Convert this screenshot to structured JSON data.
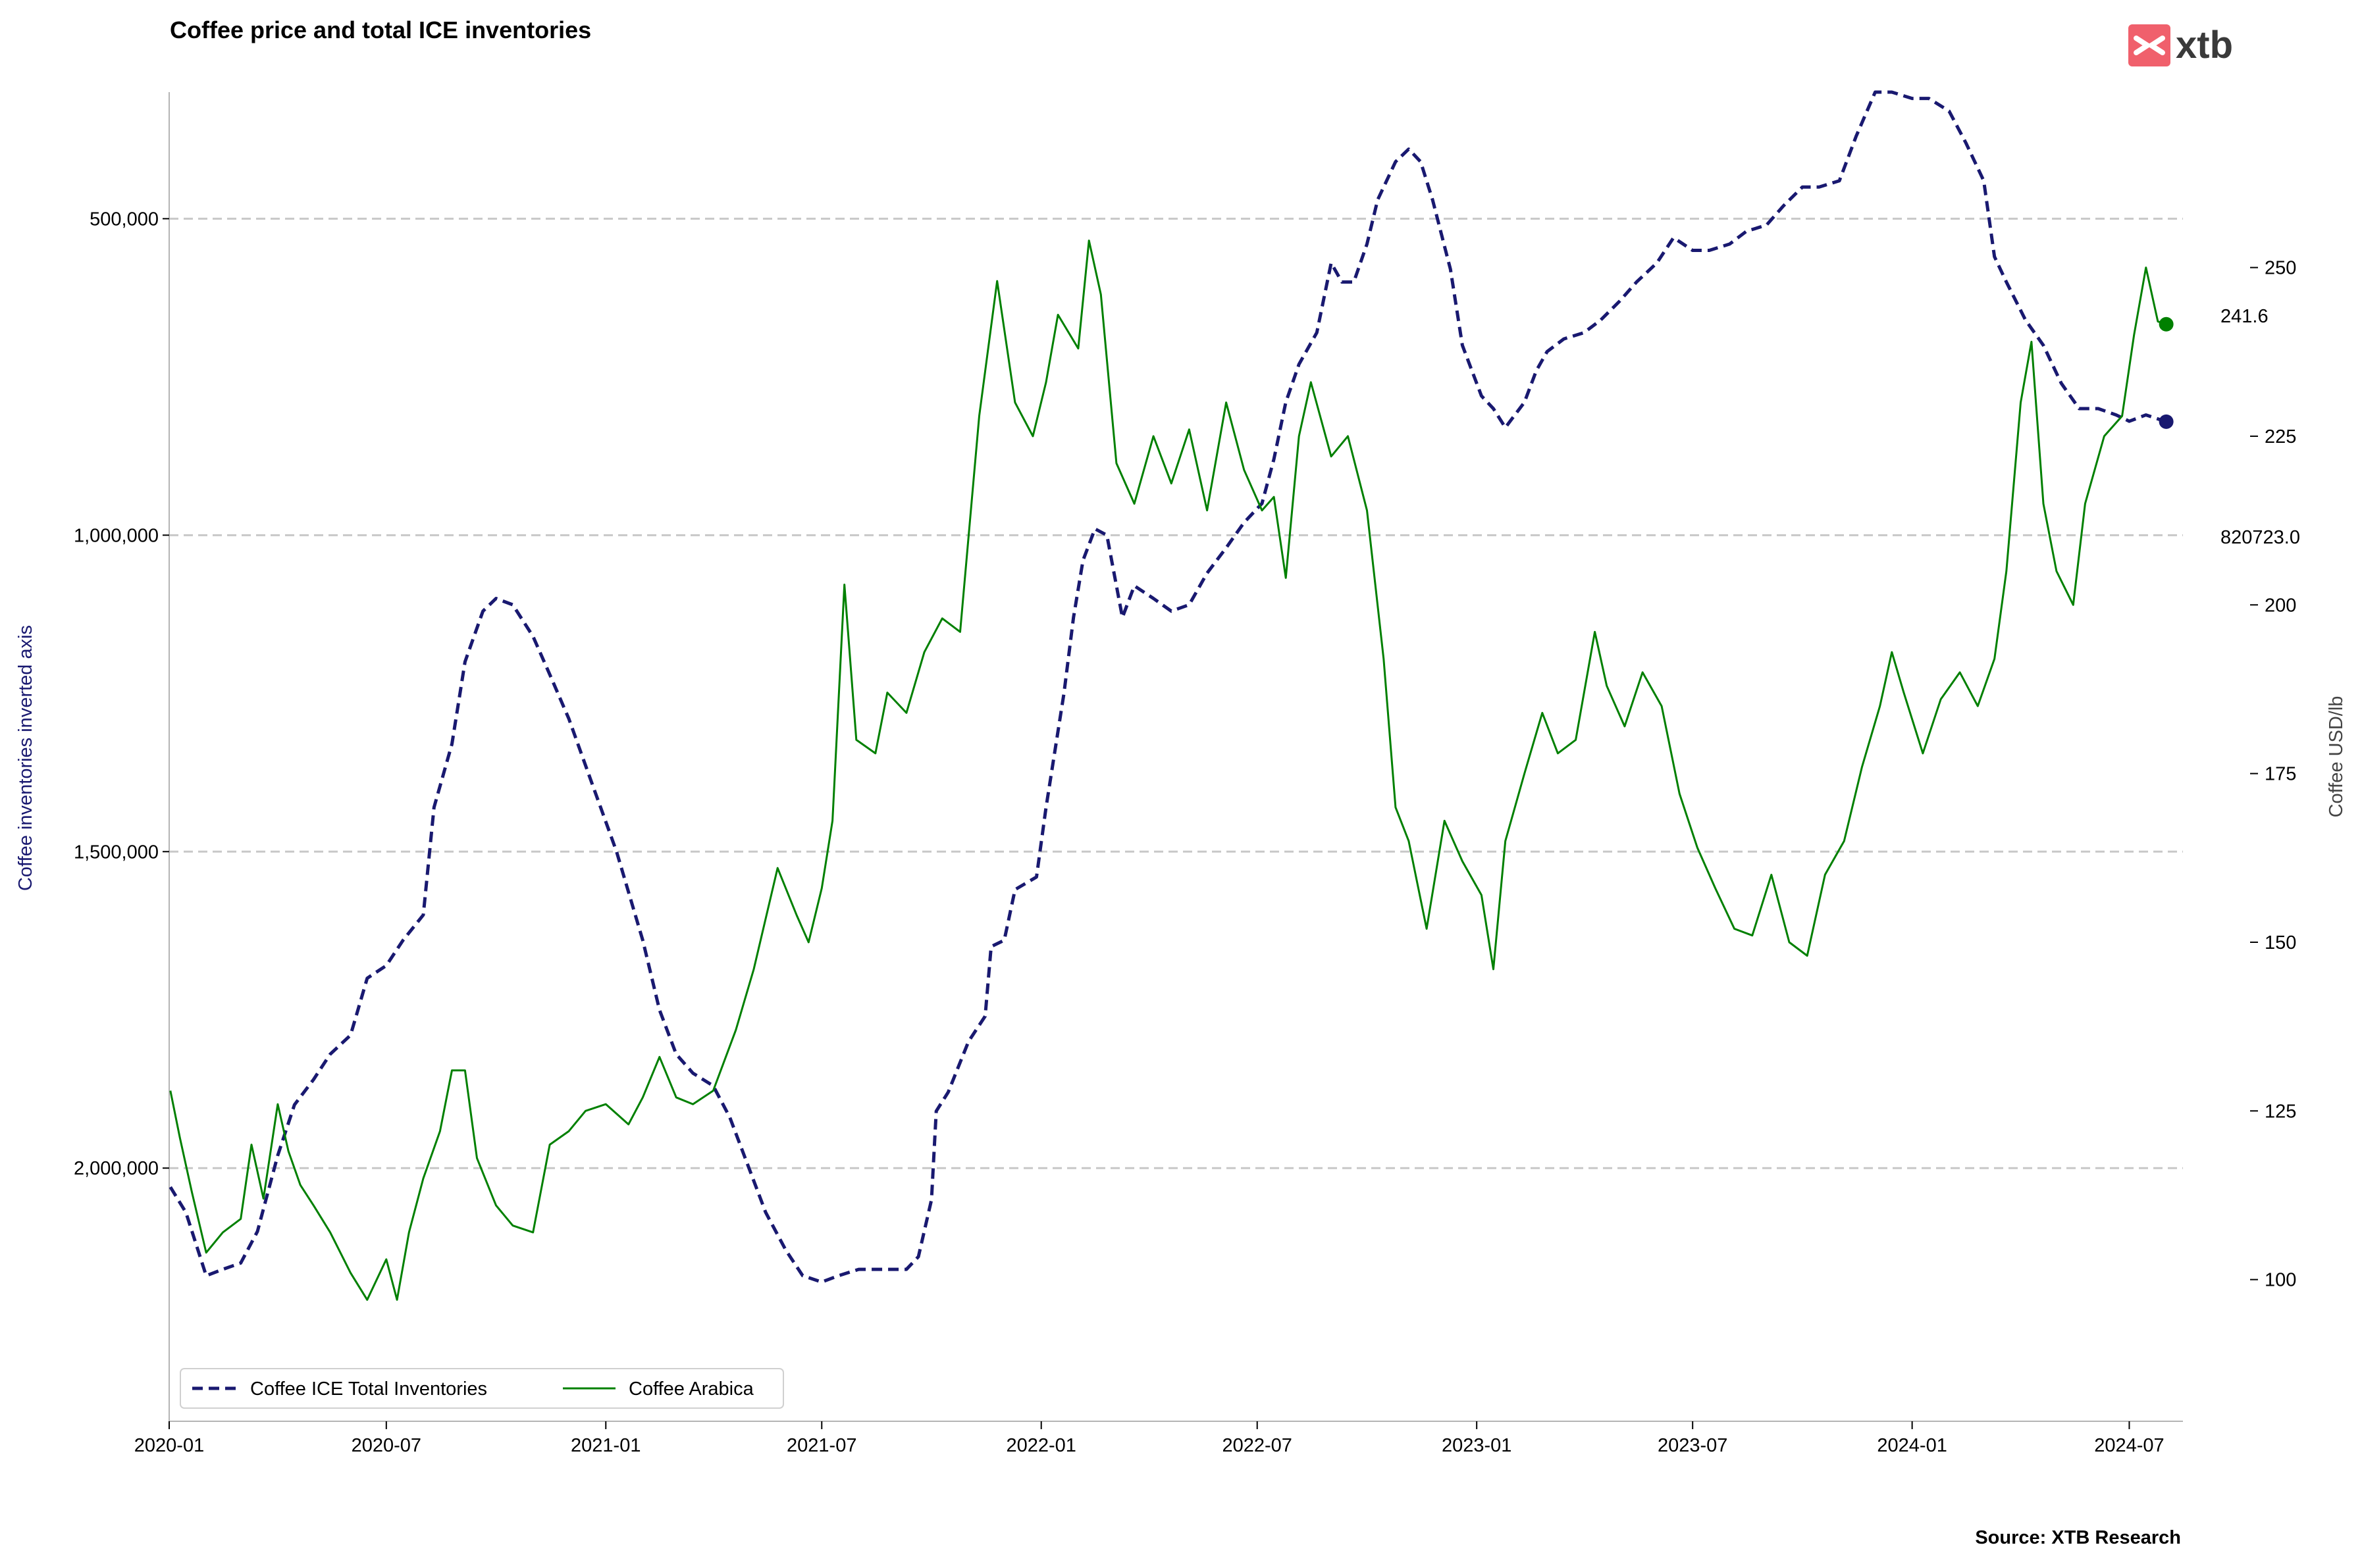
{
  "chart_data": {
    "type": "line",
    "title": "Coffee price and total ICE inventories",
    "source": "Source: XTB Research",
    "brand": "xtb",
    "colors": {
      "inventories": "#191970",
      "arabica": "#008000",
      "grid": "#c8c8c8",
      "logo_mark": "#f0606c"
    },
    "x_axis": {
      "tick_labels": [
        "2020-01",
        "2020-07",
        "2021-01",
        "2021-07",
        "2022-01",
        "2022-07",
        "2023-01",
        "2023-07",
        "2024-01",
        "2024-07"
      ],
      "range": [
        "2020-01-01",
        "2024-08-15"
      ]
    },
    "left_axis": {
      "label": "Coffee inventories inverted axis",
      "inverted": true,
      "range": [
        300000,
        2400000
      ],
      "ticks": [
        500000,
        1000000,
        1500000,
        2000000
      ],
      "tick_labels": [
        "500,000",
        "1,000,000",
        "1,500,000",
        "2,000,000"
      ]
    },
    "right_axis": {
      "label": "Coffee USD/lb",
      "range": [
        79,
        276
      ],
      "ticks": [
        100,
        125,
        150,
        175,
        200,
        225,
        250
      ],
      "tick_labels": [
        "100",
        "125",
        "150",
        "175",
        "200",
        "225",
        "250"
      ]
    },
    "grid": "horizontal dashed at left-axis ticks",
    "legend_position": "lower-left",
    "series": [
      {
        "name": "Coffee ICE Total Inventories",
        "axis": "left",
        "style": "dashed",
        "end_label": "820723.0",
        "points": [
          [
            "2020-01-02",
            2030000
          ],
          [
            "2020-01-15",
            2070000
          ],
          [
            "2020-02-01",
            2170000
          ],
          [
            "2020-02-15",
            2160000
          ],
          [
            "2020-03-01",
            2150000
          ],
          [
            "2020-03-15",
            2100000
          ],
          [
            "2020-04-01",
            1980000
          ],
          [
            "2020-04-15",
            1900000
          ],
          [
            "2020-05-01",
            1860000
          ],
          [
            "2020-05-15",
            1820000
          ],
          [
            "2020-06-01",
            1790000
          ],
          [
            "2020-06-15",
            1700000
          ],
          [
            "2020-07-01",
            1680000
          ],
          [
            "2020-07-15",
            1640000
          ],
          [
            "2020-08-01",
            1600000
          ],
          [
            "2020-08-10",
            1430000
          ],
          [
            "2020-08-25",
            1330000
          ],
          [
            "2020-09-05",
            1200000
          ],
          [
            "2020-09-20",
            1120000
          ],
          [
            "2020-10-01",
            1100000
          ],
          [
            "2020-10-15",
            1110000
          ],
          [
            "2020-11-01",
            1160000
          ],
          [
            "2020-11-15",
            1220000
          ],
          [
            "2020-12-01",
            1290000
          ],
          [
            "2020-12-20",
            1390000
          ],
          [
            "2021-01-10",
            1500000
          ],
          [
            "2021-02-01",
            1640000
          ],
          [
            "2021-02-15",
            1750000
          ],
          [
            "2021-03-01",
            1820000
          ],
          [
            "2021-03-15",
            1850000
          ],
          [
            "2021-04-01",
            1870000
          ],
          [
            "2021-04-15",
            1920000
          ],
          [
            "2021-05-01",
            2000000
          ],
          [
            "2021-05-15",
            2070000
          ],
          [
            "2021-06-01",
            2130000
          ],
          [
            "2021-06-15",
            2170000
          ],
          [
            "2021-07-01",
            2180000
          ],
          [
            "2021-07-15",
            2170000
          ],
          [
            "2021-08-01",
            2160000
          ],
          [
            "2021-08-20",
            2160000
          ],
          [
            "2021-09-10",
            2160000
          ],
          [
            "2021-09-20",
            2140000
          ],
          [
            "2021-10-01",
            2050000
          ],
          [
            "2021-10-05",
            1910000
          ],
          [
            "2021-10-15",
            1880000
          ],
          [
            "2021-11-01",
            1800000
          ],
          [
            "2021-11-15",
            1760000
          ],
          [
            "2021-11-20",
            1650000
          ],
          [
            "2021-12-01",
            1640000
          ],
          [
            "2021-12-10",
            1560000
          ],
          [
            "2021-12-28",
            1540000
          ],
          [
            "2022-01-05",
            1430000
          ],
          [
            "2022-01-20",
            1250000
          ],
          [
            "2022-01-28",
            1130000
          ],
          [
            "2022-02-05",
            1040000
          ],
          [
            "2022-02-15",
            990000
          ],
          [
            "2022-02-25",
            1000000
          ],
          [
            "2022-03-10",
            1130000
          ],
          [
            "2022-03-20",
            1080000
          ],
          [
            "2022-04-05",
            1100000
          ],
          [
            "2022-04-20",
            1120000
          ],
          [
            "2022-05-05",
            1110000
          ],
          [
            "2022-05-20",
            1060000
          ],
          [
            "2022-06-05",
            1020000
          ],
          [
            "2022-06-20",
            980000
          ],
          [
            "2022-07-05",
            950000
          ],
          [
            "2022-07-15",
            880000
          ],
          [
            "2022-07-25",
            790000
          ],
          [
            "2022-08-05",
            730000
          ],
          [
            "2022-08-20",
            680000
          ],
          [
            "2022-09-01",
            570000
          ],
          [
            "2022-09-10",
            600000
          ],
          [
            "2022-09-20",
            600000
          ],
          [
            "2022-10-01",
            540000
          ],
          [
            "2022-10-10",
            470000
          ],
          [
            "2022-10-25",
            410000
          ],
          [
            "2022-11-05",
            390000
          ],
          [
            "2022-11-15",
            410000
          ],
          [
            "2022-11-25",
            470000
          ],
          [
            "2022-12-10",
            580000
          ],
          [
            "2022-12-20",
            700000
          ],
          [
            "2023-01-05",
            780000
          ],
          [
            "2023-01-15",
            800000
          ],
          [
            "2023-01-25",
            830000
          ],
          [
            "2023-02-10",
            790000
          ],
          [
            "2023-02-20",
            740000
          ],
          [
            "2023-03-01",
            710000
          ],
          [
            "2023-03-15",
            690000
          ],
          [
            "2023-04-01",
            680000
          ],
          [
            "2023-04-15",
            660000
          ],
          [
            "2023-05-01",
            630000
          ],
          [
            "2023-05-15",
            600000
          ],
          [
            "2023-06-01",
            570000
          ],
          [
            "2023-06-15",
            530000
          ],
          [
            "2023-07-01",
            550000
          ],
          [
            "2023-07-15",
            550000
          ],
          [
            "2023-08-01",
            540000
          ],
          [
            "2023-08-15",
            520000
          ],
          [
            "2023-09-01",
            510000
          ],
          [
            "2023-09-15",
            480000
          ],
          [
            "2023-10-01",
            450000
          ],
          [
            "2023-10-15",
            450000
          ],
          [
            "2023-11-01",
            440000
          ],
          [
            "2023-11-15",
            370000
          ],
          [
            "2023-12-01",
            300000
          ],
          [
            "2023-12-15",
            300000
          ],
          [
            "2024-01-01",
            310000
          ],
          [
            "2024-01-15",
            310000
          ],
          [
            "2024-02-01",
            330000
          ],
          [
            "2024-02-15",
            380000
          ],
          [
            "2024-03-01",
            440000
          ],
          [
            "2024-03-10",
            560000
          ],
          [
            "2024-03-20",
            600000
          ],
          [
            "2024-04-05",
            660000
          ],
          [
            "2024-04-20",
            700000
          ],
          [
            "2024-05-05",
            760000
          ],
          [
            "2024-05-20",
            800000
          ],
          [
            "2024-06-05",
            800000
          ],
          [
            "2024-06-20",
            810000
          ],
          [
            "2024-07-01",
            820000
          ],
          [
            "2024-07-15",
            810000
          ],
          [
            "2024-08-01",
            820723
          ]
        ]
      },
      {
        "name": "Coffee Arabica",
        "axis": "right",
        "style": "solid",
        "end_label": "241.6",
        "points": [
          [
            "2020-01-02",
            128
          ],
          [
            "2020-01-10",
            121
          ],
          [
            "2020-01-20",
            113
          ],
          [
            "2020-02-01",
            104
          ],
          [
            "2020-02-15",
            107
          ],
          [
            "2020-03-01",
            109
          ],
          [
            "2020-03-10",
            120
          ],
          [
            "2020-03-20",
            112
          ],
          [
            "2020-04-01",
            126
          ],
          [
            "2020-04-10",
            119
          ],
          [
            "2020-04-20",
            114
          ],
          [
            "2020-05-01",
            111
          ],
          [
            "2020-05-15",
            107
          ],
          [
            "2020-06-01",
            101
          ],
          [
            "2020-06-15",
            97
          ],
          [
            "2020-07-01",
            103
          ],
          [
            "2020-07-10",
            97
          ],
          [
            "2020-07-20",
            107
          ],
          [
            "2020-08-01",
            115
          ],
          [
            "2020-08-15",
            122
          ],
          [
            "2020-08-25",
            131
          ],
          [
            "2020-09-05",
            131
          ],
          [
            "2020-09-15",
            118
          ],
          [
            "2020-10-01",
            111
          ],
          [
            "2020-10-15",
            108
          ],
          [
            "2020-11-01",
            107
          ],
          [
            "2020-11-15",
            120
          ],
          [
            "2020-12-01",
            122
          ],
          [
            "2020-12-15",
            125
          ],
          [
            "2021-01-01",
            126
          ],
          [
            "2021-01-20",
            123
          ],
          [
            "2021-02-01",
            127
          ],
          [
            "2021-02-15",
            133
          ],
          [
            "2021-03-01",
            127
          ],
          [
            "2021-03-15",
            126
          ],
          [
            "2021-04-01",
            128
          ],
          [
            "2021-04-20",
            137
          ],
          [
            "2021-05-05",
            146
          ],
          [
            "2021-05-25",
            161
          ],
          [
            "2021-06-10",
            154
          ],
          [
            "2021-06-20",
            150
          ],
          [
            "2021-07-01",
            158
          ],
          [
            "2021-07-10",
            168
          ],
          [
            "2021-07-20",
            203
          ],
          [
            "2021-07-30",
            180
          ],
          [
            "2021-08-15",
            178
          ],
          [
            "2021-08-25",
            187
          ],
          [
            "2021-09-10",
            184
          ],
          [
            "2021-09-25",
            193
          ],
          [
            "2021-10-10",
            198
          ],
          [
            "2021-10-25",
            196
          ],
          [
            "2021-11-10",
            228
          ],
          [
            "2021-11-25",
            248
          ],
          [
            "2021-12-10",
            230
          ],
          [
            "2021-12-25",
            225
          ],
          [
            "2022-01-05",
            233
          ],
          [
            "2022-01-15",
            243
          ],
          [
            "2022-02-01",
            238
          ],
          [
            "2022-02-10",
            254
          ],
          [
            "2022-02-20",
            246
          ],
          [
            "2022-03-05",
            221
          ],
          [
            "2022-03-20",
            215
          ],
          [
            "2022-04-05",
            225
          ],
          [
            "2022-04-20",
            218
          ],
          [
            "2022-05-05",
            226
          ],
          [
            "2022-05-20",
            214
          ],
          [
            "2022-06-05",
            230
          ],
          [
            "2022-06-20",
            220
          ],
          [
            "2022-07-05",
            214
          ],
          [
            "2022-07-15",
            216
          ],
          [
            "2022-07-25",
            204
          ],
          [
            "2022-08-05",
            225
          ],
          [
            "2022-08-15",
            233
          ],
          [
            "2022-09-01",
            222
          ],
          [
            "2022-09-15",
            225
          ],
          [
            "2022-10-01",
            214
          ],
          [
            "2022-10-15",
            192
          ],
          [
            "2022-10-25",
            170
          ],
          [
            "2022-11-05",
            165
          ],
          [
            "2022-11-20",
            152
          ],
          [
            "2022-12-05",
            168
          ],
          [
            "2022-12-20",
            162
          ],
          [
            "2023-01-05",
            157
          ],
          [
            "2023-01-15",
            146
          ],
          [
            "2023-01-25",
            165
          ],
          [
            "2023-02-10",
            175
          ],
          [
            "2023-02-25",
            184
          ],
          [
            "2023-03-10",
            178
          ],
          [
            "2023-03-25",
            180
          ],
          [
            "2023-04-10",
            196
          ],
          [
            "2023-04-20",
            188
          ],
          [
            "2023-05-05",
            182
          ],
          [
            "2023-05-20",
            190
          ],
          [
            "2023-06-05",
            185
          ],
          [
            "2023-06-20",
            172
          ],
          [
            "2023-07-05",
            164
          ],
          [
            "2023-07-20",
            158
          ],
          [
            "2023-08-05",
            152
          ],
          [
            "2023-08-20",
            151
          ],
          [
            "2023-09-05",
            160
          ],
          [
            "2023-09-20",
            150
          ],
          [
            "2023-10-05",
            148
          ],
          [
            "2023-10-20",
            160
          ],
          [
            "2023-11-05",
            165
          ],
          [
            "2023-11-20",
            176
          ],
          [
            "2023-12-05",
            185
          ],
          [
            "2023-12-15",
            193
          ],
          [
            "2023-12-25",
            187
          ],
          [
            "2024-01-10",
            178
          ],
          [
            "2024-01-25",
            186
          ],
          [
            "2024-02-10",
            190
          ],
          [
            "2024-02-25",
            185
          ],
          [
            "2024-03-10",
            192
          ],
          [
            "2024-03-20",
            205
          ],
          [
            "2024-04-01",
            230
          ],
          [
            "2024-04-10",
            239
          ],
          [
            "2024-04-20",
            215
          ],
          [
            "2024-05-01",
            205
          ],
          [
            "2024-05-15",
            200
          ],
          [
            "2024-05-25",
            215
          ],
          [
            "2024-06-10",
            225
          ],
          [
            "2024-06-25",
            228
          ],
          [
            "2024-07-05",
            240
          ],
          [
            "2024-07-15",
            250
          ],
          [
            "2024-07-25",
            242
          ],
          [
            "2024-08-01",
            241.6
          ]
        ]
      }
    ]
  }
}
